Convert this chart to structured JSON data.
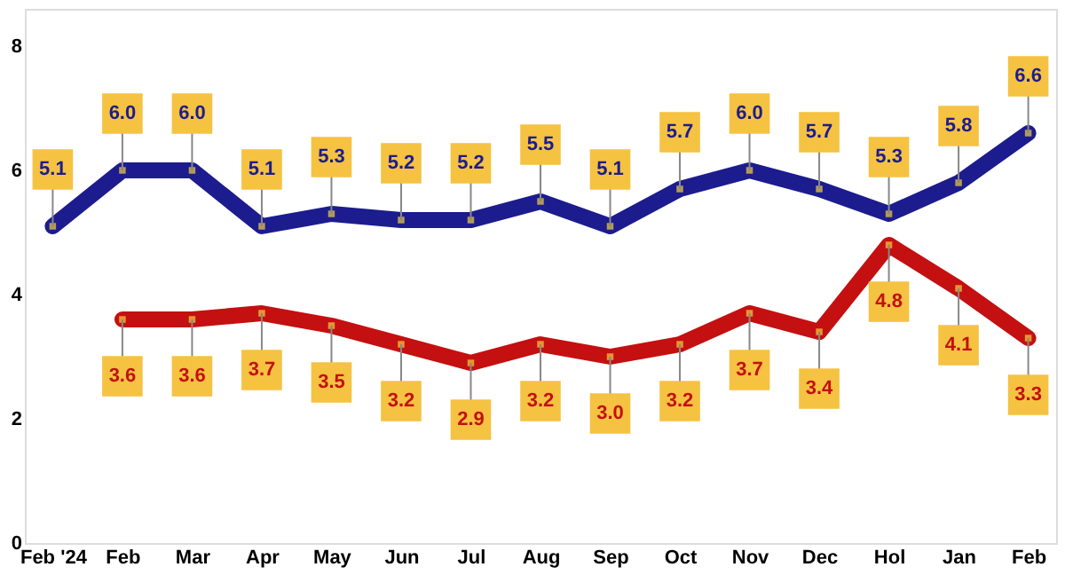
{
  "chart_data": {
    "type": "line",
    "categories": [
      "Feb '24",
      "Feb",
      "Mar",
      "Apr",
      "May",
      "Jun",
      "Jul",
      "Aug",
      "Sep",
      "Oct",
      "Nov",
      "Dec",
      "Hol",
      "Jan",
      "Feb"
    ],
    "series": [
      {
        "color": "#1c1c8f",
        "values": [
          5.1,
          6.0,
          6.0,
          5.1,
          5.3,
          5.2,
          5.2,
          5.5,
          5.1,
          5.7,
          6.0,
          5.7,
          5.3,
          5.8,
          6.6
        ],
        "value_labels": [
          "5.1",
          "6.0",
          "6.0",
          "5.1",
          "5.3",
          "5.2",
          "5.2",
          "5.5",
          "5.1",
          "5.7",
          "6.0",
          "5.7",
          "5.3",
          "5.8",
          "6.6"
        ]
      },
      {
        "color": "#c41010",
        "values": [
          null,
          3.6,
          3.6,
          3.7,
          3.5,
          3.2,
          2.9,
          3.2,
          3.0,
          3.2,
          3.7,
          3.4,
          4.8,
          4.1,
          3.3
        ],
        "value_labels": [
          null,
          "3.6",
          "3.6",
          "3.7",
          "3.5",
          "3.2",
          "2.9",
          "3.2",
          "3.0",
          "3.2",
          "3.7",
          "3.4",
          "4.8",
          "4.1",
          "3.3"
        ]
      }
    ],
    "ylim": [
      0,
      8.6
    ],
    "yticks": [
      0,
      2,
      4,
      6,
      8
    ],
    "grid": false,
    "marker": "square",
    "line_style": "solid"
  }
}
